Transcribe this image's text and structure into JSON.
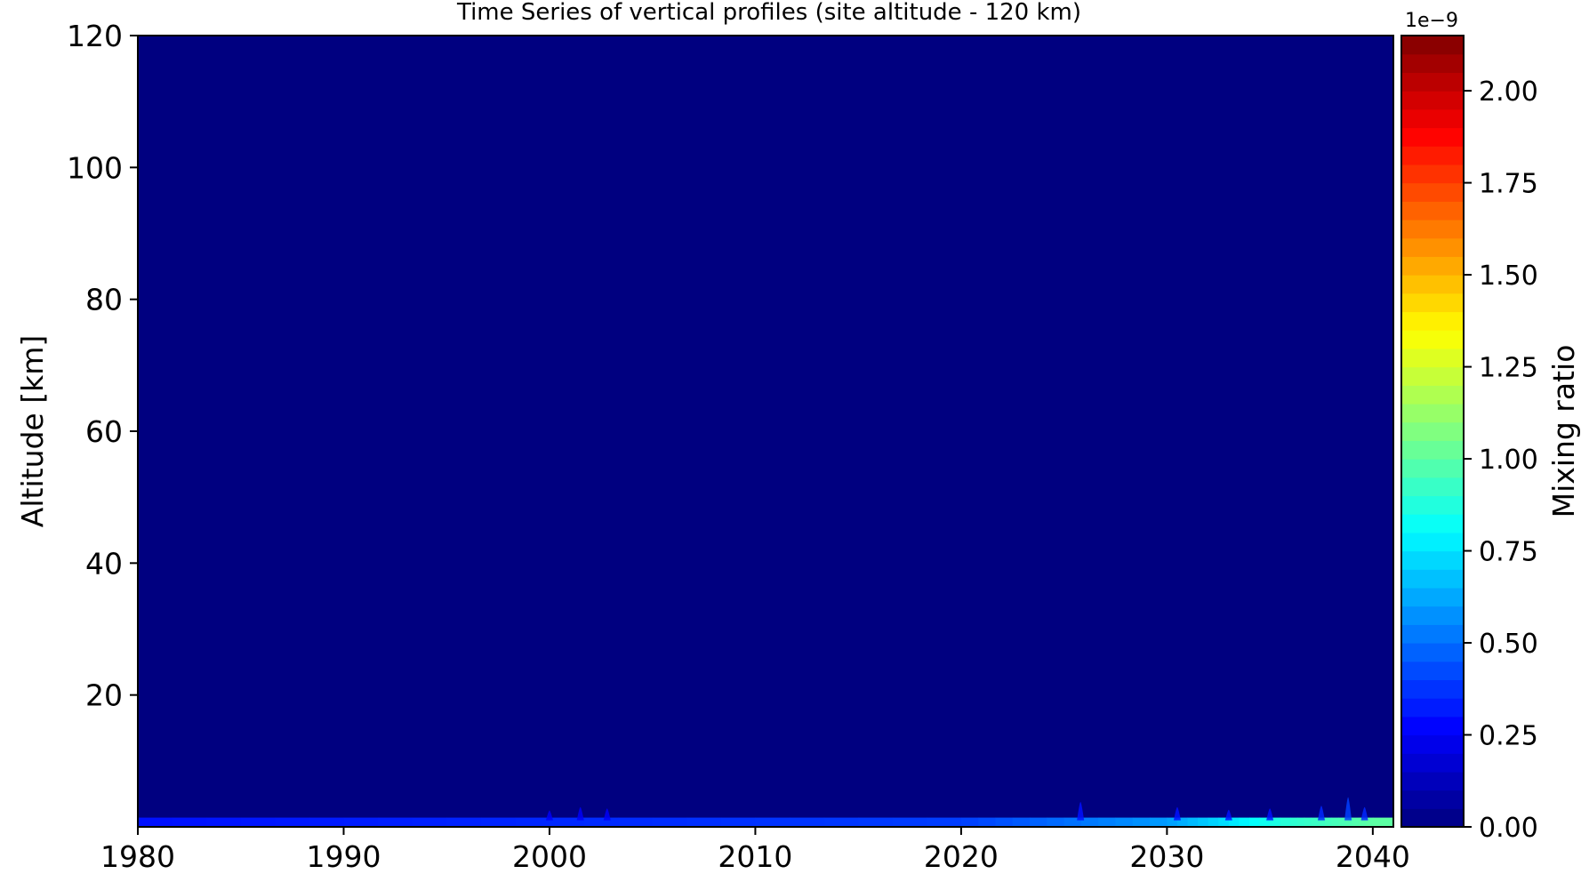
{
  "chart_data": {
    "type": "heatmap",
    "title": "Time Series of vertical profiles (site altitude - 120 km)",
    "xlabel": "",
    "ylabel": "Altitude [km]",
    "xlim": [
      1980,
      2041
    ],
    "ylim": [
      0,
      120
    ],
    "x_ticks": [
      "1980",
      "1990",
      "2000",
      "2010",
      "2020",
      "2030",
      "2040"
    ],
    "x_tick_values": [
      1980,
      1990,
      2000,
      2010,
      2020,
      2030,
      2040
    ],
    "y_ticks": [
      "20",
      "40",
      "60",
      "80",
      "100",
      "120"
    ],
    "y_tick_values": [
      20,
      40,
      60,
      80,
      100,
      120
    ],
    "colormap": "jet",
    "background_color": "#000080",
    "colorbar": {
      "label": "Mixing ratio",
      "offset_text": "1e−9",
      "range": [
        0,
        2.15
      ],
      "ticks": [
        "0.00",
        "0.25",
        "0.50",
        "0.75",
        "1.00",
        "1.25",
        "1.50",
        "1.75",
        "2.00"
      ],
      "tick_values": [
        0,
        0.25,
        0.5,
        0.75,
        1.0,
        1.25,
        1.5,
        1.75,
        2.0
      ],
      "levels": 43
    },
    "surface_band": {
      "altitude_range": [
        0,
        1
      ],
      "description_values": [
        {
          "year": 1980,
          "value": 0.3
        },
        {
          "year": 2000,
          "value": 0.35
        },
        {
          "year": 2020,
          "value": 0.4
        },
        {
          "year": 2030,
          "value": 0.6
        },
        {
          "year": 2036,
          "value": 0.9
        },
        {
          "year": 2040,
          "value": 1.0
        }
      ]
    },
    "features": [
      {
        "year": 2000.0,
        "alt_top": 2.5,
        "value": 0.25
      },
      {
        "year": 2001.5,
        "alt_top": 3.0,
        "value": 0.25
      },
      {
        "year": 2002.8,
        "alt_top": 2.8,
        "value": 0.25
      },
      {
        "year": 2025.8,
        "alt_top": 3.8,
        "value": 0.3
      },
      {
        "year": 2030.5,
        "alt_top": 3.0,
        "value": 0.3
      },
      {
        "year": 2033.0,
        "alt_top": 2.6,
        "value": 0.3
      },
      {
        "year": 2035.0,
        "alt_top": 2.8,
        "value": 0.3
      },
      {
        "year": 2037.5,
        "alt_top": 3.2,
        "value": 0.35
      },
      {
        "year": 2038.8,
        "alt_top": 4.5,
        "value": 0.4
      },
      {
        "year": 2039.6,
        "alt_top": 3.0,
        "value": 0.35
      }
    ],
    "grid": false
  }
}
